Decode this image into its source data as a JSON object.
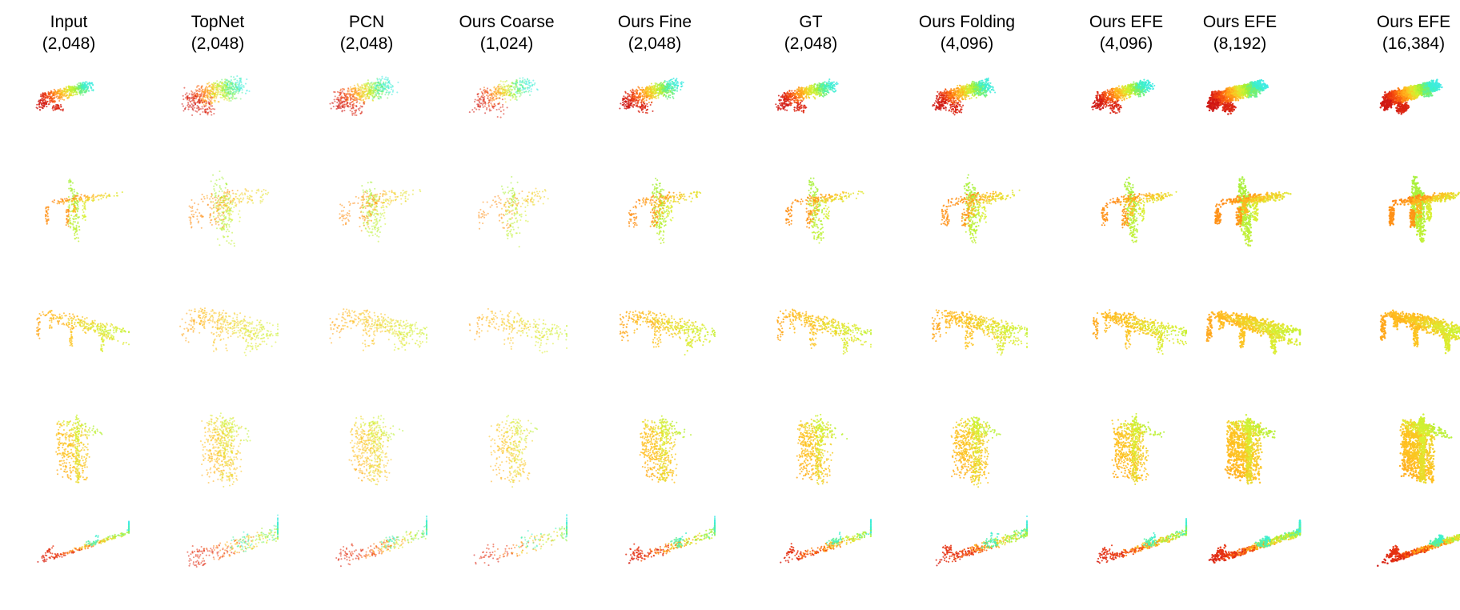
{
  "columns": [
    {
      "name": "Input",
      "count": "(2,048)",
      "density": 0.55,
      "noise": 0.0,
      "fine": 0.5
    },
    {
      "name": "TopNet",
      "count": "(2,048)",
      "density": 0.65,
      "noise": 1.0,
      "fine": 0.0
    },
    {
      "name": "PCN",
      "count": "(2,048)",
      "density": 0.6,
      "noise": 0.8,
      "fine": 0.0
    },
    {
      "name": "Ours Coarse",
      "count": "(1,024)",
      "density": 0.4,
      "noise": 0.9,
      "fine": 0.0
    },
    {
      "name": "Ours Fine",
      "count": "(2,048)",
      "density": 0.65,
      "noise": 0.45,
      "fine": 0.6
    },
    {
      "name": "GT",
      "count": "(2,048)",
      "density": 0.65,
      "noise": 0.3,
      "fine": 0.7
    },
    {
      "name": "Ours Folding",
      "count": "(4,096)",
      "density": 0.9,
      "noise": 0.45,
      "fine": 0.7
    },
    {
      "name": "Ours EFE",
      "count": "(4,096)",
      "density": 0.9,
      "noise": 0.25,
      "fine": 0.85
    },
    {
      "name": "Ours EFE",
      "count": "(8,192)",
      "density": 1.15,
      "noise": 0.2,
      "fine": 0.9
    },
    {
      "name": "Ours EFE",
      "count": "(16,384)",
      "density": 1.4,
      "noise": 0.15,
      "fine": 1.0
    }
  ],
  "rows": [
    {
      "shape": "car"
    },
    {
      "shape": "chair"
    },
    {
      "shape": "table"
    },
    {
      "shape": "cabinet"
    },
    {
      "shape": "boat"
    }
  ],
  "colormap": [
    "#cc1414",
    "#ee3a10",
    "#ff7a10",
    "#ffc020",
    "#d8f030",
    "#96f03c",
    "#3cf0c8",
    "#40e8f0"
  ]
}
